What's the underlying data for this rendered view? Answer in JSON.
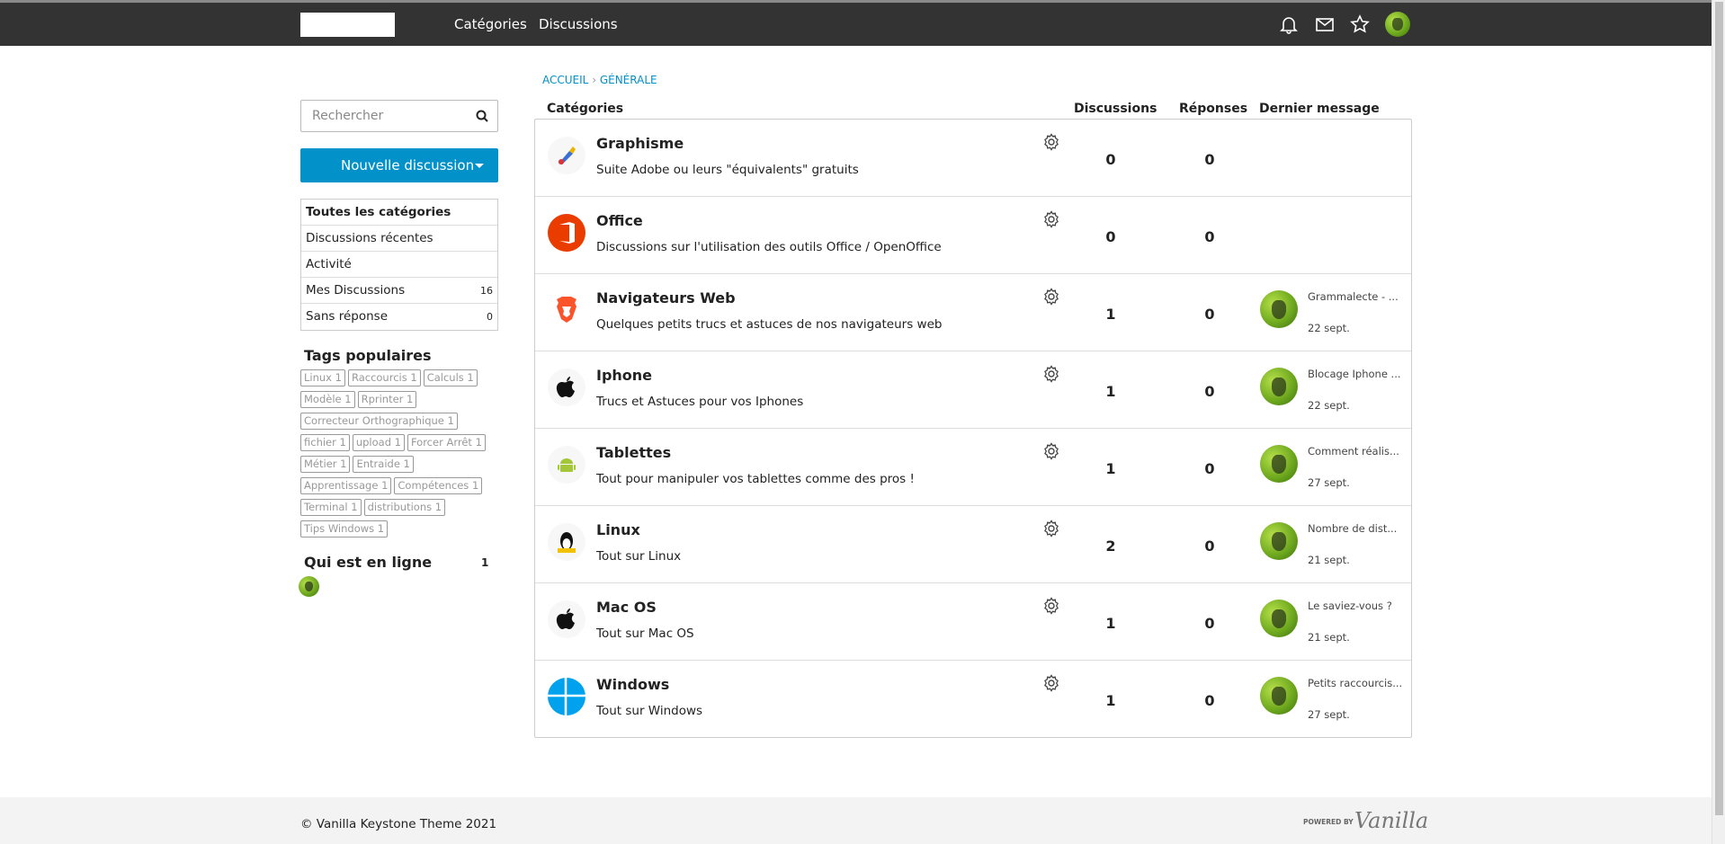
{
  "nav": {
    "links": [
      "Catégories",
      "Discussions"
    ],
    "icons": [
      "bell-icon",
      "mail-icon",
      "star-icon",
      "avatar"
    ]
  },
  "sidebar": {
    "search_placeholder": "Rechercher",
    "new_discussion": "Nouvelle discussion",
    "menu": [
      {
        "label": "Toutes les catégories"
      },
      {
        "label": "Discussions récentes"
      },
      {
        "label": "Activité"
      },
      {
        "label": "Mes Discussions",
        "count": "16"
      },
      {
        "label": "Sans réponse",
        "count": "0"
      }
    ],
    "tags_title": "Tags populaires",
    "tags": [
      "Linux 1",
      "Raccourcis 1",
      "Calculs 1",
      "Modèle 1",
      "Rprinter 1",
      "Correcteur Orthographique 1",
      "fichier 1",
      "upload 1",
      "Forcer Arrêt 1",
      "Métier 1",
      "Entraide 1",
      "Apprentissage 1",
      "Compétences 1",
      "Terminal 1",
      "distributions 1",
      "Tips Windows 1"
    ],
    "online_title": "Qui est en ligne",
    "online_count": "1"
  },
  "breadcrumb": {
    "home": "ACCUEIL",
    "sep": "›",
    "current": "GÉNÉRALE"
  },
  "table": {
    "headers": {
      "categories": "Catégories",
      "discussions": "Discussions",
      "replies": "Réponses",
      "last": "Dernier message"
    },
    "rows": [
      {
        "icon": "graphics-icon",
        "title": "Graphisme",
        "desc": "Suite Adobe ou leurs \"équivalents\" gratuits",
        "discussions": "0",
        "replies": "0"
      },
      {
        "icon": "office-icon",
        "title": "Office",
        "desc": "Discussions sur l'utilisation des outils Office / OpenOffice",
        "discussions": "0",
        "replies": "0"
      },
      {
        "icon": "brave-icon",
        "title": "Navigateurs Web",
        "desc": "Quelques petits trucs et astuces de nos navigateurs web",
        "discussions": "1",
        "replies": "0",
        "last_title": "Grammalecte - ...",
        "last_date": "22 sept."
      },
      {
        "icon": "apple-icon",
        "title": "Iphone",
        "desc": "Trucs et Astuces pour vos Iphones",
        "discussions": "1",
        "replies": "0",
        "last_title": "Blocage Iphone ...",
        "last_date": "22 sept."
      },
      {
        "icon": "android-icon",
        "title": "Tablettes",
        "desc": "Tout pour manipuler vos tablettes comme des pros !",
        "discussions": "1",
        "replies": "0",
        "last_title": "Comment réalis...",
        "last_date": "27 sept."
      },
      {
        "icon": "linux-icon",
        "title": "Linux",
        "desc": "Tout sur Linux",
        "discussions": "2",
        "replies": "0",
        "last_title": "Nombre de dist...",
        "last_date": "21 sept."
      },
      {
        "icon": "apple-icon",
        "title": "Mac OS",
        "desc": "Tout sur Mac OS",
        "discussions": "1",
        "replies": "0",
        "last_title": "Le saviez-vous ?",
        "last_date": "21 sept."
      },
      {
        "icon": "windows-icon",
        "title": "Windows",
        "desc": "Tout sur Windows",
        "discussions": "1",
        "replies": "0",
        "last_title": "Petits raccourcis...",
        "last_date": "27 sept."
      }
    ]
  },
  "footer": {
    "copyright": "© Vanilla Keystone Theme 2021",
    "powered": "POWERED BY",
    "brand": "Vanilla"
  },
  "colors": {
    "accent": "#0291c9",
    "navbar": "#333333"
  }
}
